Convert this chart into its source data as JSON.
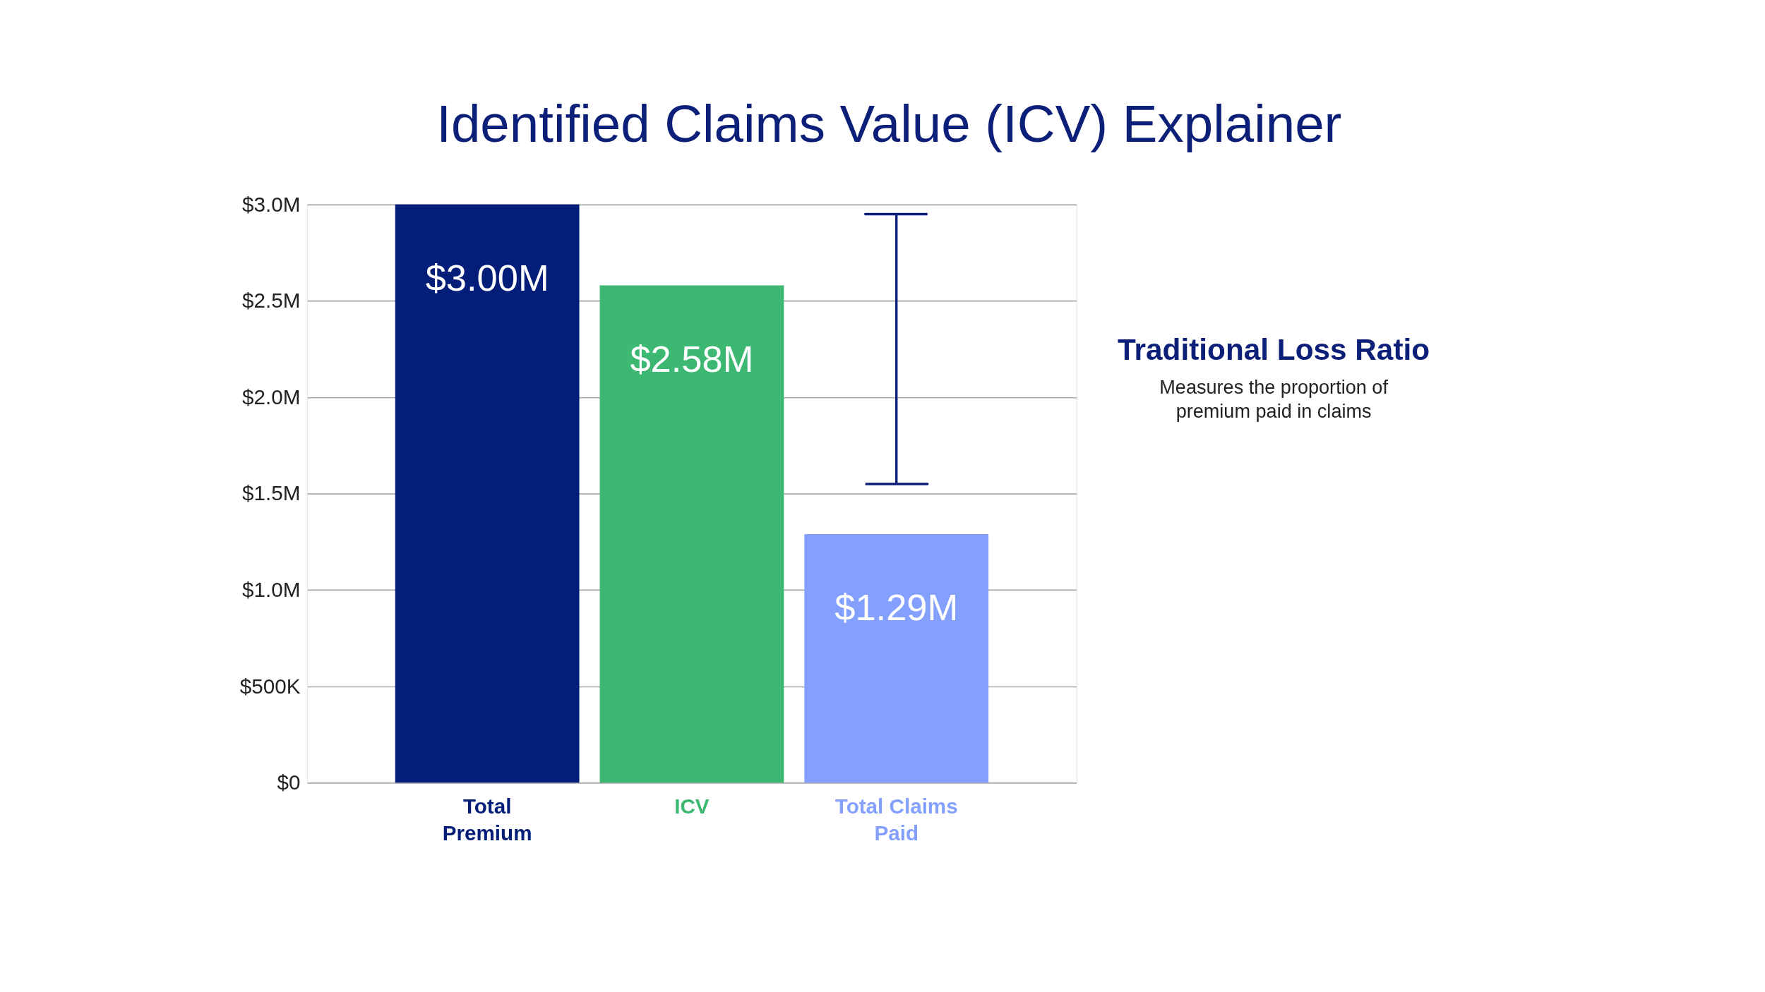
{
  "chart_data": {
    "type": "bar",
    "title": "Identified Claims Value (ICV) Explainer",
    "categories": [
      "Total Premium",
      "ICV",
      "Total Claims Paid"
    ],
    "values": [
      3000000,
      2580000,
      1290000
    ],
    "colors": [
      "#031e79",
      "#3db873",
      "#84a0fe"
    ],
    "value_labels": [
      "$3.00M",
      "$2.58M",
      "$1.29M"
    ],
    "errors": [
      null,
      null,
      [
        1550000,
        2950000
      ]
    ],
    "ylim": [
      0,
      3000000
    ],
    "yticks": [
      {
        "value": 0,
        "label": "$0"
      },
      {
        "value": 500000,
        "label": "$500K"
      },
      {
        "value": 1000000,
        "label": "$1.0M"
      },
      {
        "value": 1500000,
        "label": "$1.5M"
      },
      {
        "value": 2000000,
        "label": "$2.0M"
      },
      {
        "value": 2500000,
        "label": "$2.5M"
      },
      {
        "value": 3000000,
        "label": "$3.0M"
      }
    ],
    "grid": "y",
    "annotations": [
      "Traditional Loss Ratio",
      "Measures the proportion of premium paid in claims"
    ]
  }
}
